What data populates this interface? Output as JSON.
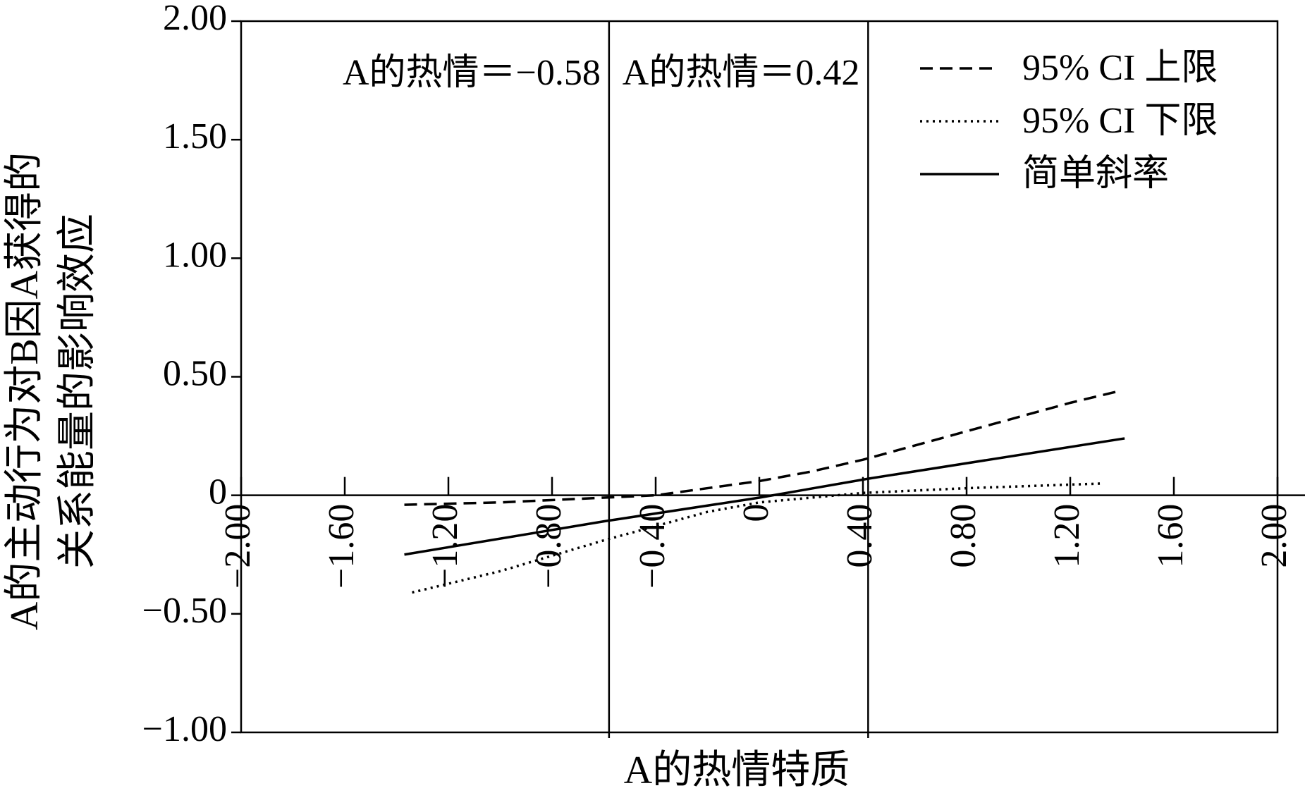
{
  "chart_data": {
    "type": "line",
    "x_label": "A的热情特质",
    "y_label_lines": [
      "A的主动行为对B因A获得的",
      "关系能量的影响效应"
    ],
    "xlim": [
      -2,
      2
    ],
    "ylim": [
      -1,
      2
    ],
    "xticks": [
      {
        "value": -2,
        "label": "−2.00"
      },
      {
        "value": -1.6,
        "label": "−1.60"
      },
      {
        "value": -1.2,
        "label": "−1.20"
      },
      {
        "value": -0.8,
        "label": "−0.80"
      },
      {
        "value": -0.4,
        "label": "−0.40"
      },
      0,
      {
        "value": 0.4,
        "label": "0.40"
      },
      {
        "value": 0.8,
        "label": "0.80"
      },
      {
        "value": 1.2,
        "label": "1.20"
      },
      {
        "value": 1.6,
        "label": "1.60"
      },
      {
        "value": 2,
        "label": "2.00"
      }
    ],
    "yticks": [
      {
        "value": 2,
        "label": "2.00"
      },
      {
        "value": 1.5,
        "label": "1.50"
      },
      {
        "value": 1,
        "label": "1.00"
      },
      {
        "value": 0.5,
        "label": "0.50"
      },
      0,
      {
        "value": -0.5,
        "label": "−0.50"
      },
      {
        "value": -1,
        "label": "−1.00"
      }
    ],
    "annotations": [
      {
        "text": "A的热情＝−0.58",
        "x": -0.58
      },
      {
        "text": "A的热情＝0.42",
        "x": 0.42
      }
    ],
    "legend": "upper right",
    "series": [
      {
        "name": "95% CI 上限",
        "color": "#000000",
        "dash": "dashed",
        "x": [
          -1.37,
          -1.0,
          -0.6,
          -0.4,
          -0.2,
          0,
          0.2,
          0.4,
          0.6,
          0.8,
          1.0,
          1.2,
          1.39
        ],
        "values": [
          -0.04,
          -0.03,
          -0.01,
          0.0,
          0.03,
          0.06,
          0.1,
          0.15,
          0.21,
          0.27,
          0.33,
          0.39,
          0.44
        ]
      },
      {
        "name": "95% CI 下限",
        "color": "#000000",
        "dash": "dotted",
        "x": [
          -1.34,
          -1.0,
          -0.6,
          -0.4,
          -0.2,
          0,
          0.2,
          0.4,
          0.8,
          1.33
        ],
        "values": [
          -0.41,
          -0.32,
          -0.19,
          -0.13,
          -0.07,
          -0.03,
          -0.01,
          0.01,
          0.03,
          0.05
        ]
      },
      {
        "name": "简单斜率",
        "color": "#000000",
        "dash": "solid",
        "x": [
          -1.37,
          -0.6,
          0,
          0.42,
          1.41
        ],
        "values": [
          -0.25,
          -0.11,
          -0.01,
          0.07,
          0.24
        ]
      }
    ]
  }
}
